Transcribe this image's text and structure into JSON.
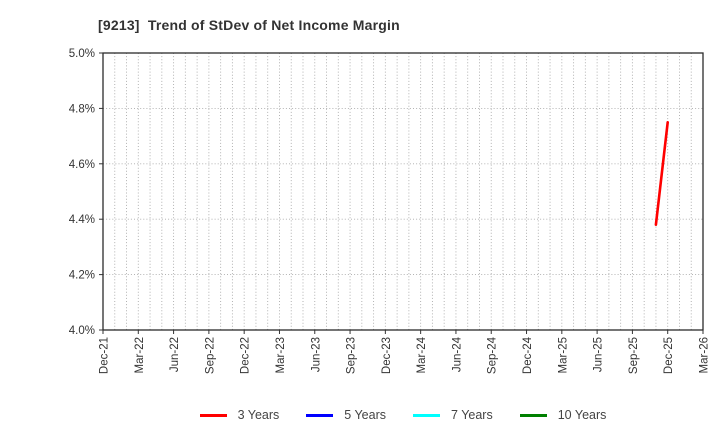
{
  "title": "[9213]  Trend of StDev of Net Income Margin",
  "colors": {
    "background": "#ffffff",
    "plot_border": "#2b2b2b",
    "gridline": "#aaaaaa",
    "tick_mark": "#333333",
    "tick_label": "#333333",
    "title_text": "#333333"
  },
  "chart_data": {
    "type": "line",
    "title": "[9213]  Trend of StDev of Net Income Margin",
    "xlabel": "",
    "ylabel": "",
    "y_unit": "%",
    "ylim": [
      4.0,
      5.0
    ],
    "grid": "dotted, vertical every month, horizontal every 0.2%",
    "legend_position": "bottom",
    "y_axis": {
      "labels": [
        "5.0%",
        "4.8%",
        "4.6%",
        "4.4%",
        "4.2%",
        "4.0%"
      ],
      "values": [
        5.0,
        4.8,
        4.6,
        4.4,
        4.2,
        4.0
      ]
    },
    "x_axis": {
      "labels": [
        "Dec-21",
        "Mar-22",
        "Jun-22",
        "Sep-22",
        "Dec-22",
        "Mar-23",
        "Jun-23",
        "Sep-23",
        "Dec-23",
        "Mar-24",
        "Jun-24",
        "Sep-24",
        "Dec-24",
        "Mar-25",
        "Jun-25",
        "Sep-25",
        "Dec-25",
        "Mar-26"
      ],
      "months_between_labels": 3,
      "total_months": 51,
      "start_month": "Dec-21",
      "end_month": "Mar-26"
    },
    "series": [
      {
        "name": "3 Years",
        "color": "#ff0000",
        "points": [
          {
            "x": "Nov-25",
            "y": 4.38
          },
          {
            "x": "Dec-25",
            "y": 4.75
          }
        ]
      },
      {
        "name": "5 Years",
        "color": "#0000ff",
        "points": []
      },
      {
        "name": "7 Years",
        "color": "#00ffff",
        "points": []
      },
      {
        "name": "10 Years",
        "color": "#008000",
        "points": []
      }
    ]
  },
  "legend": {
    "items": [
      {
        "label": "3 Years",
        "color": "#ff0000"
      },
      {
        "label": "5 Years",
        "color": "#0000ff"
      },
      {
        "label": "7 Years",
        "color": "#00ffff"
      },
      {
        "label": "10 Years",
        "color": "#008000"
      }
    ]
  }
}
